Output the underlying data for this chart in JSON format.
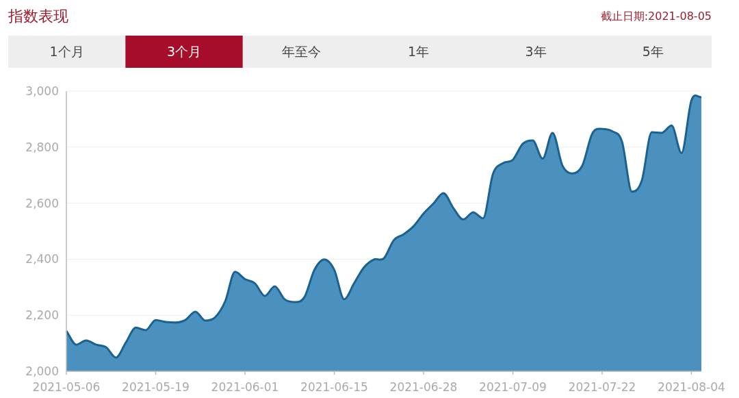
{
  "chart_data": {
    "type": "area",
    "title": "指数表现",
    "annotations": [
      "截止日期:2021-08-05",
      "1个月",
      "3个月",
      "年至今",
      "1年",
      "3年",
      "5年"
    ],
    "categories": [
      "2021-05-06",
      null,
      null,
      null,
      null,
      null,
      null,
      null,
      null,
      "2021-05-19",
      null,
      null,
      null,
      null,
      null,
      null,
      null,
      null,
      "2021-06-01",
      null,
      null,
      null,
      null,
      null,
      null,
      null,
      null,
      "2021-06-15",
      null,
      null,
      null,
      null,
      null,
      null,
      null,
      null,
      "2021-06-28",
      null,
      null,
      null,
      null,
      null,
      null,
      null,
      null,
      "2021-07-09",
      null,
      null,
      null,
      null,
      null,
      null,
      null,
      null,
      "2021-07-22",
      null,
      null,
      null,
      null,
      null,
      null,
      null,
      null,
      "2021-08-04",
      null
    ],
    "series": [
      {
        "color": "#4a91bf",
        "values": [
          2144,
          2095,
          2110,
          2095,
          2086,
          2049,
          2103,
          2156,
          2147,
          2183,
          2176,
          2174,
          2183,
          2213,
          2181,
          2193,
          2249,
          2355,
          2329,
          2314,
          2269,
          2303,
          2257,
          2247,
          2265,
          2362,
          2399,
          2362,
          2257,
          2314,
          2371,
          2399,
          2403,
          2468,
          2489,
          2518,
          2563,
          2599,
          2636,
          2583,
          2542,
          2567,
          2546,
          2705,
          2743,
          2755,
          2812,
          2824,
          2759,
          2851,
          2734,
          2706,
          2734,
          2848,
          2865,
          2857,
          2820,
          2641,
          2681,
          2853,
          2851,
          2877,
          2779,
          2967,
          2979
        ]
      }
    ],
    "ylim": [
      2000,
      3000
    ],
    "yticks": [
      {
        "value": 2000,
        "label": "2,000"
      },
      {
        "value": 2200,
        "label": "2,200"
      },
      {
        "value": 2400,
        "label": "2,400"
      },
      {
        "value": 2600,
        "label": "2,600"
      },
      {
        "value": 2800,
        "label": "2,800"
      },
      {
        "value": 3000,
        "label": "3,000"
      }
    ],
    "grid": "y"
  }
}
